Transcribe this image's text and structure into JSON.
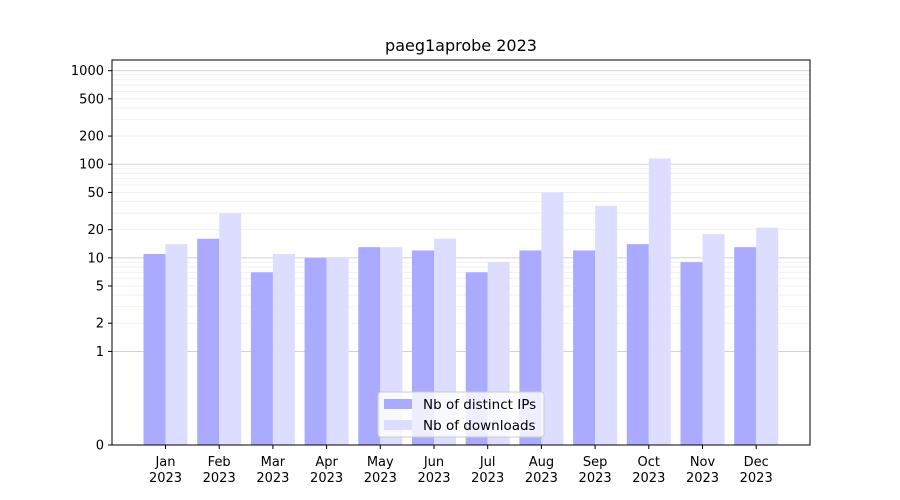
{
  "chart_data": {
    "type": "bar",
    "title": "paeg1aprobe 2023",
    "xlabel": "",
    "ylabel": "",
    "yscale": "symlog",
    "ylim": [
      0,
      1300
    ],
    "grid": "y-major-and-minor",
    "legend_position": "bottom-center",
    "y_ticks": [
      0,
      1,
      2,
      5,
      10,
      20,
      50,
      100,
      200,
      500,
      1000
    ],
    "y_tick_labels": [
      "0",
      "1",
      "2",
      "5",
      "10",
      "20",
      "50",
      "100",
      "200",
      "500",
      "1000"
    ],
    "categories": [
      [
        "Jan",
        "2023"
      ],
      [
        "Feb",
        "2023"
      ],
      [
        "Mar",
        "2023"
      ],
      [
        "Apr",
        "2023"
      ],
      [
        "May",
        "2023"
      ],
      [
        "Jun",
        "2023"
      ],
      [
        "Jul",
        "2023"
      ],
      [
        "Aug",
        "2023"
      ],
      [
        "Sep",
        "2023"
      ],
      [
        "Oct",
        "2023"
      ],
      [
        "Nov",
        "2023"
      ],
      [
        "Dec",
        "2023"
      ]
    ],
    "series": [
      {
        "name": "Nb of distinct IPs",
        "color": "#aaaaff",
        "values": [
          11,
          16,
          7,
          10,
          13,
          12,
          7,
          12,
          12,
          14,
          9,
          13
        ]
      },
      {
        "name": "Nb of downloads",
        "color": "#ddddff",
        "values": [
          14,
          30,
          11,
          10,
          13,
          16,
          9,
          50,
          36,
          115,
          18,
          21
        ]
      }
    ]
  }
}
